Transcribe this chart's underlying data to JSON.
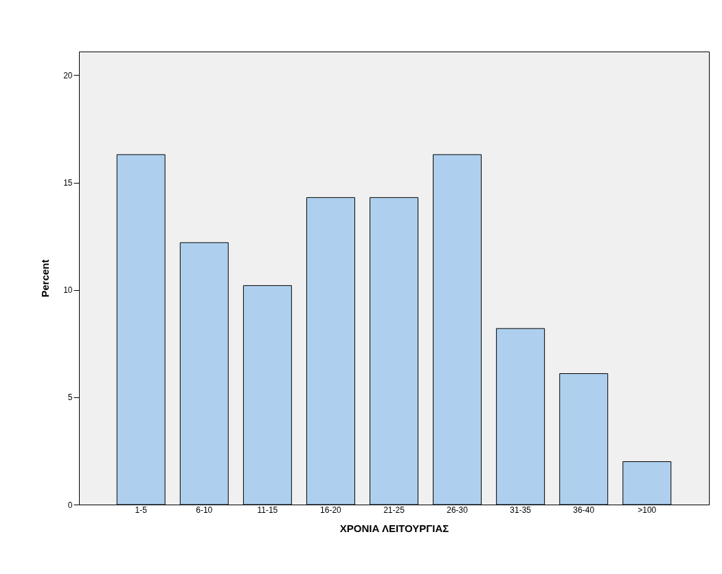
{
  "chart_data": {
    "type": "bar",
    "xlabel": "ΧΡΟΝΙΑ ΛΕΙΤΟΥΡΓΙΑΣ",
    "ylabel": "Percent",
    "categories": [
      "1-5",
      "6-10",
      "11-15",
      "16-20",
      "21-25",
      "26-30",
      "31-35",
      "36-40",
      ">100"
    ],
    "values": [
      16.3,
      12.2,
      10.2,
      14.3,
      14.3,
      16.3,
      8.2,
      6.1,
      2.0
    ],
    "color": "#aed0ee",
    "ylim": [
      0,
      21.1
    ],
    "yticks": [
      0,
      5,
      10,
      15,
      20
    ],
    "grid": false
  }
}
